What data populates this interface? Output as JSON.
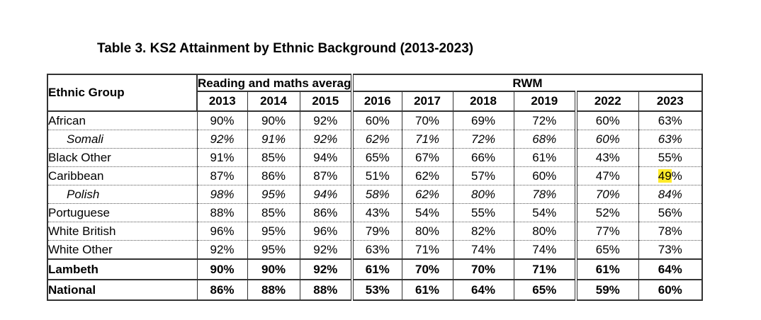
{
  "title": "Table 3.  KS2 Attainment by Ethnic Background (2013-2023)",
  "headers": {
    "ethnic_group": "Ethnic Group",
    "group1": "Reading and maths average",
    "group2": "RWM",
    "years": [
      "2013",
      "2014",
      "2015",
      "2016",
      "2017",
      "2018",
      "2019",
      "2022",
      "2023"
    ]
  },
  "rows": [
    {
      "name": "African",
      "values": [
        "90%",
        "90%",
        "92%",
        "60%",
        "70%",
        "69%",
        "72%",
        "60%",
        "63%"
      ]
    },
    {
      "name": "Somali",
      "values": [
        "92%",
        "91%",
        "92%",
        "62%",
        "71%",
        "72%",
        "68%",
        "60%",
        "63%"
      ]
    },
    {
      "name": "Black Other",
      "values": [
        "91%",
        "85%",
        "94%",
        "65%",
        "67%",
        "66%",
        "61%",
        "43%",
        "55%"
      ]
    },
    {
      "name": "Caribbean",
      "values": [
        "87%",
        "86%",
        "87%",
        "51%",
        "62%",
        "57%",
        "60%",
        "47%",
        "49%"
      ]
    },
    {
      "name": "Polish",
      "values": [
        "98%",
        "95%",
        "94%",
        "58%",
        "62%",
        "80%",
        "78%",
        "70%",
        "84%"
      ]
    },
    {
      "name": "Portuguese",
      "values": [
        "88%",
        "85%",
        "86%",
        "43%",
        "54%",
        "55%",
        "54%",
        "52%",
        "56%"
      ]
    },
    {
      "name": "White British",
      "values": [
        "96%",
        "95%",
        "96%",
        "79%",
        "80%",
        "82%",
        "80%",
        "77%",
        "78%"
      ]
    },
    {
      "name": "White Other",
      "values": [
        "92%",
        "95%",
        "92%",
        "63%",
        "71%",
        "74%",
        "74%",
        "65%",
        "73%"
      ]
    },
    {
      "name": "Lambeth",
      "values": [
        "90%",
        "90%",
        "92%",
        "61%",
        "70%",
        "70%",
        "71%",
        "61%",
        "64%"
      ]
    },
    {
      "name": "National",
      "values": [
        "86%",
        "88%",
        "88%",
        "53%",
        "61%",
        "64%",
        "65%",
        "59%",
        "60%"
      ]
    }
  ],
  "highlight": {
    "row": "Caribbean",
    "year": "2023",
    "color": "#ffeb2a"
  }
}
